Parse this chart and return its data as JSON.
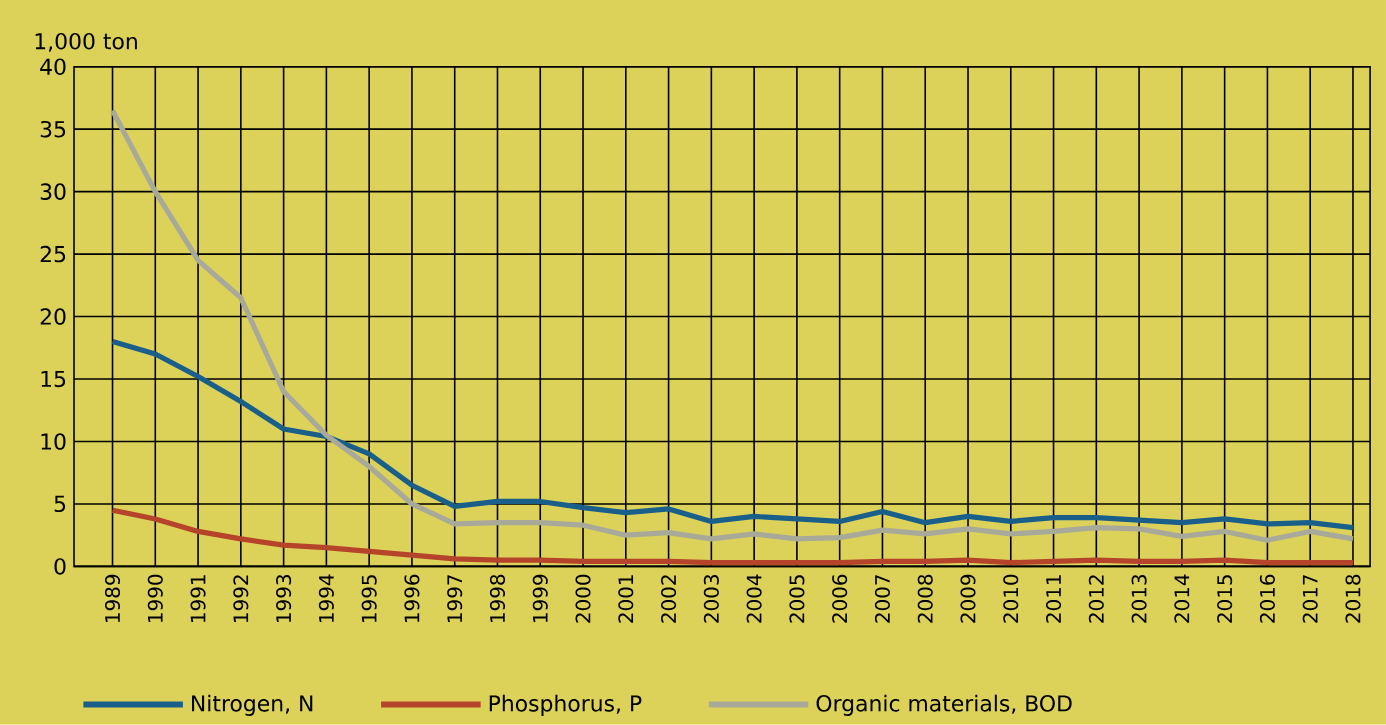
{
  "chart_data": {
    "type": "line",
    "ylabel": "1,000 ton",
    "x": [
      1989,
      1990,
      1991,
      1992,
      1993,
      1994,
      1995,
      1996,
      1997,
      1998,
      1999,
      2000,
      2001,
      2002,
      2003,
      2004,
      2005,
      2006,
      2007,
      2008,
      2009,
      2010,
      2011,
      2012,
      2013,
      2014,
      2015,
      2016,
      2017,
      2018
    ],
    "series": [
      {
        "name": "Nitrogen, N",
        "color": "#1a5f8a",
        "values": [
          18,
          17,
          15.2,
          13.2,
          11,
          10.4,
          9,
          6.5,
          4.8,
          5.2,
          5.2,
          4.7,
          4.3,
          4.6,
          3.6,
          4.0,
          3.8,
          3.6,
          4.4,
          3.5,
          4.0,
          3.6,
          3.9,
          3.9,
          3.7,
          3.5,
          3.8,
          3.4,
          3.5,
          3.1
        ]
      },
      {
        "name": "Phosphorus, P",
        "color": "#b5442a",
        "values": [
          4.5,
          3.8,
          2.8,
          2.2,
          1.7,
          1.5,
          1.2,
          0.9,
          0.6,
          0.5,
          0.5,
          0.4,
          0.4,
          0.4,
          0.3,
          0.3,
          0.3,
          0.3,
          0.4,
          0.4,
          0.5,
          0.3,
          0.4,
          0.5,
          0.4,
          0.4,
          0.5,
          0.3,
          0.3,
          0.3
        ]
      },
      {
        "name": "Organic materials, BOD",
        "color": "#a9a99a",
        "values": [
          36.5,
          30,
          24.5,
          21.5,
          14,
          10.5,
          8,
          5,
          3.4,
          3.5,
          3.5,
          3.3,
          2.5,
          2.7,
          2.2,
          2.6,
          2.2,
          2.3,
          2.9,
          2.6,
          3.0,
          2.6,
          2.8,
          3.1,
          3.0,
          2.4,
          2.8,
          2.1,
          2.8,
          2.2
        ]
      }
    ],
    "xlim": [
      1988.1,
      2018.4
    ],
    "xticks": [
      1989,
      1990,
      1991,
      1992,
      1993,
      1994,
      1995,
      1996,
      1997,
      1998,
      1999,
      2000,
      2001,
      2002,
      2003,
      2004,
      2005,
      2006,
      2007,
      2008,
      2009,
      2010,
      2011,
      2012,
      2013,
      2014,
      2015,
      2016,
      2017,
      2018
    ],
    "ylim": [
      0,
      40
    ],
    "yticks": [
      0,
      5,
      10,
      15,
      20,
      25,
      30,
      35,
      40
    ],
    "grid": true,
    "legend": "bottom left",
    "marker": "none",
    "line_style": "solid"
  }
}
